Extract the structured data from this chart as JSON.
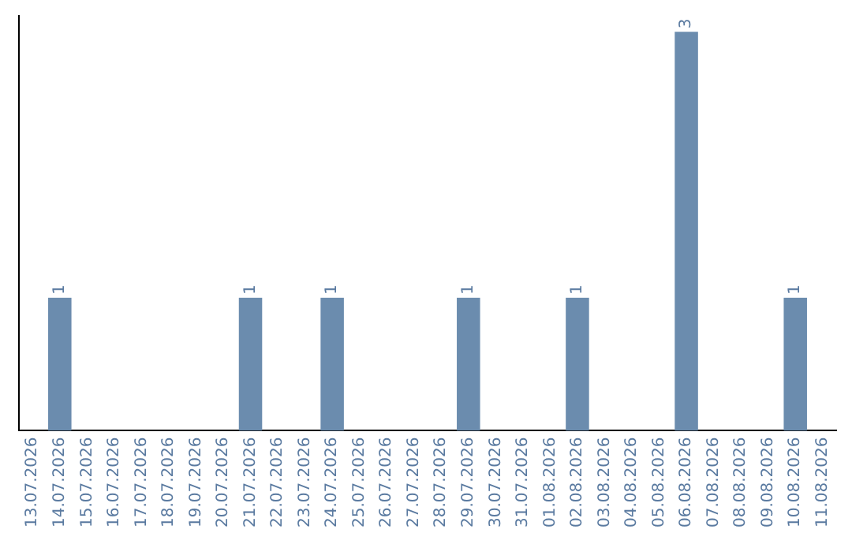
{
  "chart_data": {
    "type": "bar",
    "categories": [
      "13.07.2026",
      "14.07.2026",
      "15.07.2026",
      "16.07.2026",
      "17.07.2026",
      "18.07.2026",
      "19.07.2026",
      "20.07.2026",
      "21.07.2026",
      "22.07.2026",
      "23.07.2026",
      "24.07.2026",
      "25.07.2026",
      "26.07.2026",
      "27.07.2026",
      "28.07.2026",
      "29.07.2026",
      "30.07.2026",
      "31.07.2026",
      "01.08.2026",
      "02.08.2026",
      "03.08.2026",
      "04.08.2026",
      "05.08.2026",
      "06.08.2026",
      "07.08.2026",
      "08.08.2026",
      "09.08.2026",
      "10.08.2026",
      "11.08.2026"
    ],
    "values": [
      0,
      1,
      0,
      0,
      0,
      0,
      0,
      0,
      1,
      0,
      0,
      1,
      0,
      0,
      0,
      0,
      1,
      0,
      0,
      0,
      1,
      0,
      0,
      0,
      3,
      0,
      0,
      0,
      1,
      0
    ],
    "value_labels": [
      null,
      "1",
      null,
      null,
      null,
      null,
      null,
      null,
      "1",
      null,
      null,
      "1",
      null,
      null,
      null,
      null,
      "1",
      null,
      null,
      null,
      "1",
      null,
      null,
      null,
      "3",
      null,
      null,
      null,
      "1",
      null
    ],
    "color": "#6b8cae",
    "tick_labels": "x",
    "grid": false,
    "legend": false
  }
}
